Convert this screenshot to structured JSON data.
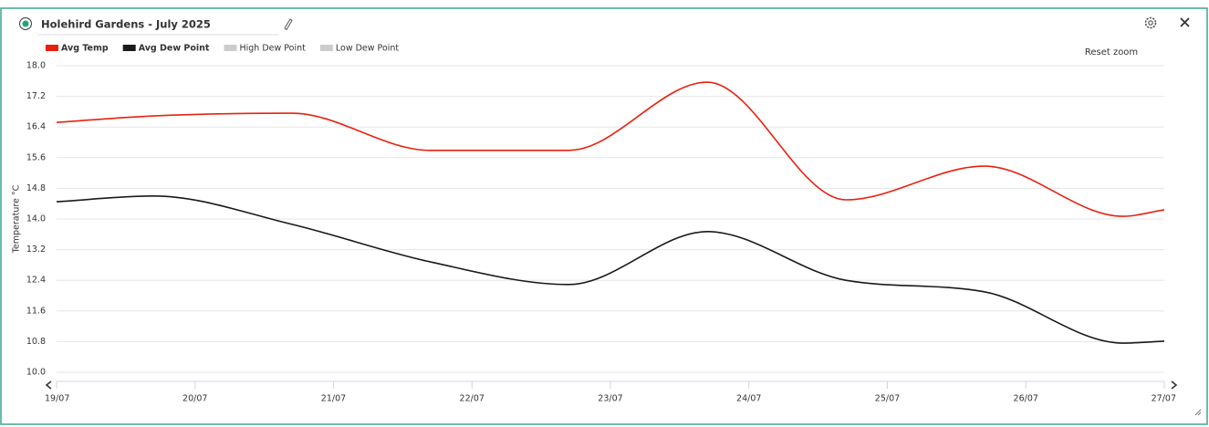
{
  "chart_data": {
    "type": "line",
    "title": "Holehird Gardens - July 2025",
    "ylabel": "Temperature °C",
    "x": [
      0,
      0.7,
      1.7,
      2.7,
      3.7,
      4.7,
      5.7,
      6.7,
      7.7,
      8
    ],
    "xlim": [
      0,
      8
    ],
    "xticks": [
      {
        "value": 0,
        "label": "19/07"
      },
      {
        "value": 1,
        "label": "20/07"
      },
      {
        "value": 2,
        "label": "21/07"
      },
      {
        "value": 3,
        "label": "22/07"
      },
      {
        "value": 4,
        "label": "23/07"
      },
      {
        "value": 5,
        "label": "24/07"
      },
      {
        "value": 6,
        "label": "25/07"
      },
      {
        "value": 7,
        "label": "26/07"
      },
      {
        "value": 8,
        "label": "27/07"
      }
    ],
    "ylim": [
      10,
      18
    ],
    "yticks": [
      {
        "value": 10,
        "label": "10.0"
      },
      10.8,
      11.6,
      12.4,
      13.2,
      {
        "value": 14,
        "label": "14.0"
      },
      14.8,
      15.6,
      16.4,
      17.2,
      {
        "value": 18,
        "label": "18.0"
      }
    ],
    "grid": true,
    "legend": "top-left",
    "series": [
      {
        "name": "Avg Temp",
        "color": "#e8210f",
        "values": [
          16.52,
          16.69,
          16.76,
          15.79,
          15.79,
          17.57,
          14.5,
          15.38,
          14.07,
          14.24
        ]
      },
      {
        "name": "Avg Dew Point",
        "color": "#1a1a1a",
        "values": [
          14.45,
          14.6,
          13.86,
          12.88,
          12.29,
          13.67,
          12.4,
          12.1,
          10.76,
          10.81
        ]
      },
      {
        "name": "High Dew Point",
        "color": "#cccccc",
        "visible": false
      },
      {
        "name": "Low Dew Point",
        "color": "#cccccc",
        "visible": false
      }
    ]
  },
  "buttons": {
    "reset_zoom": "Reset zoom"
  }
}
